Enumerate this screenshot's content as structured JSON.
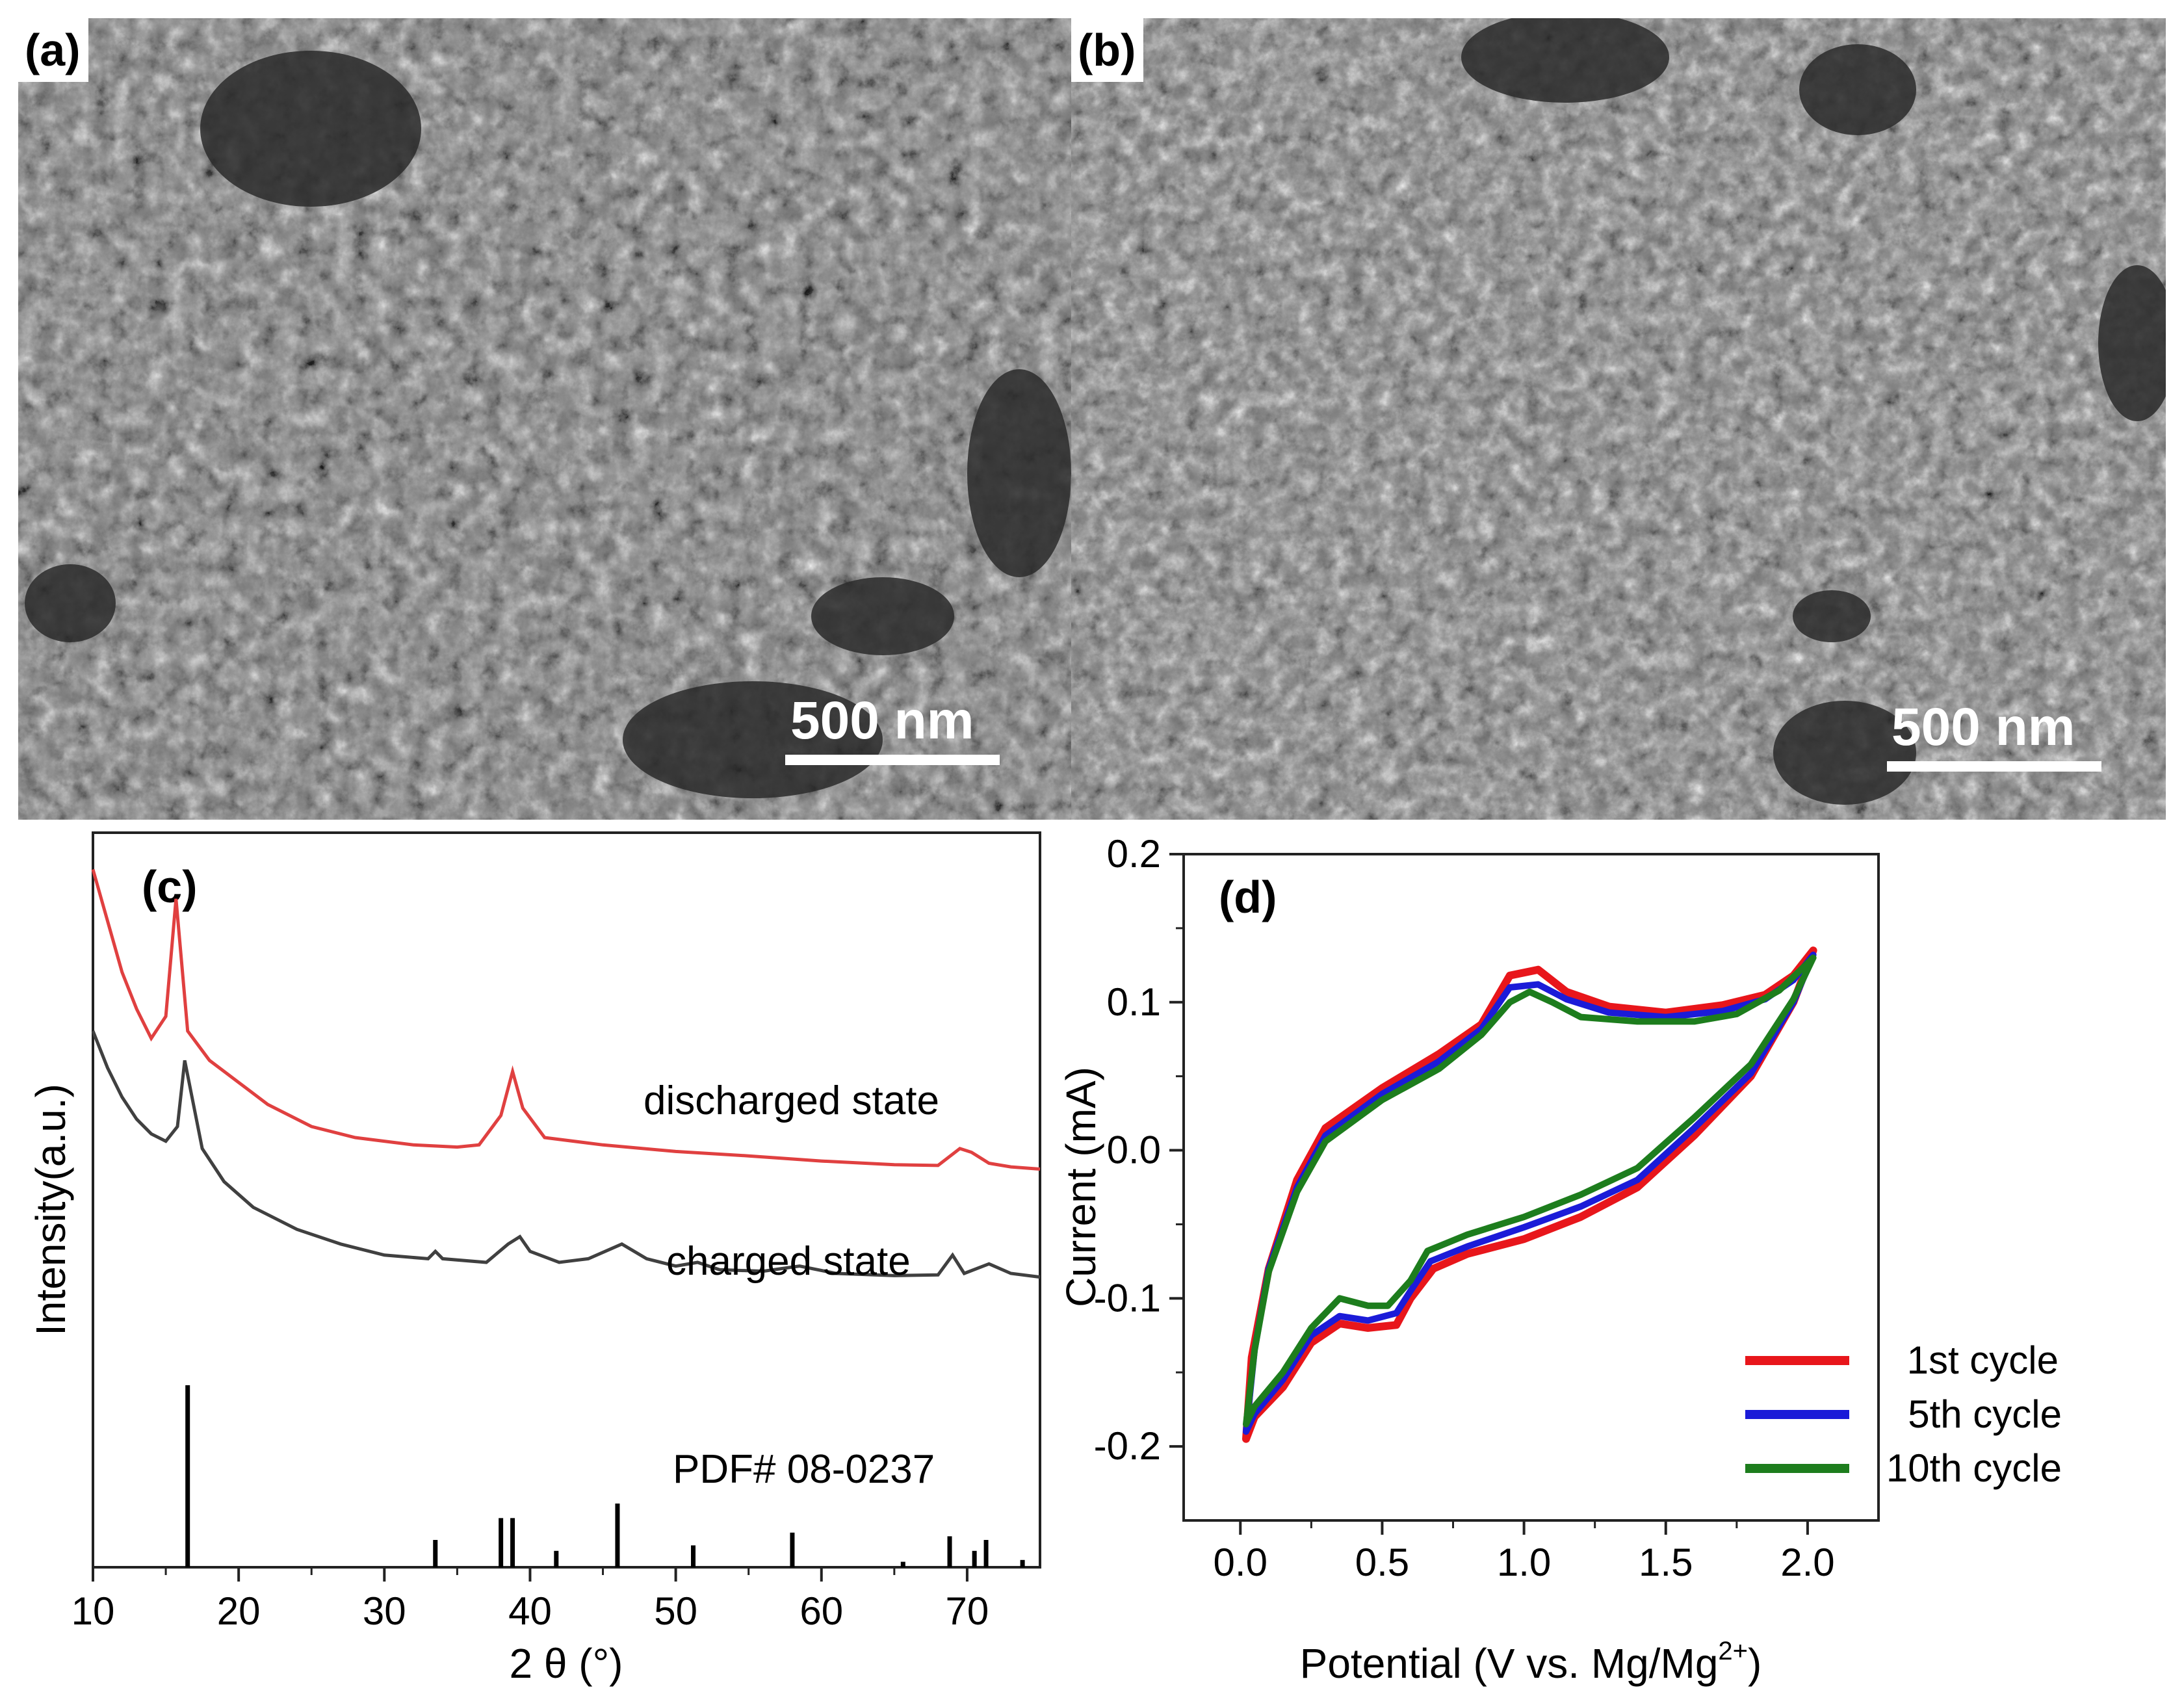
{
  "panels": {
    "a": {
      "label": "(a)",
      "scale_label": "500 nm"
    },
    "b": {
      "label": "(b)",
      "scale_label": "500 nm"
    },
    "c": {
      "label": "(c)"
    },
    "d": {
      "label": "(d)"
    }
  },
  "colors": {
    "discharged": "#e04040",
    "charged": "#404040",
    "cycle1": "#e8161b",
    "cycle5": "#1b1bd8",
    "cycle10": "#1d7d1d",
    "sem_bg": "#7f7f7f"
  },
  "chart_data": [
    {
      "id": "c",
      "type": "line",
      "title": "",
      "xlabel": "2 θ (°)",
      "ylabel": "Intensity(a.u.)",
      "xlim": [
        10,
        75
      ],
      "xticks": [
        10,
        20,
        30,
        40,
        50,
        60,
        70
      ],
      "y_ticks_shown": false,
      "series": [
        {
          "name": "discharged state",
          "points": [
            [
              10,
              0.95
            ],
            [
              11,
              0.88
            ],
            [
              12,
              0.81
            ],
            [
              13,
              0.76
            ],
            [
              14,
              0.72
            ],
            [
              15,
              0.75
            ],
            [
              15.7,
              0.91
            ],
            [
              16.5,
              0.73
            ],
            [
              18,
              0.69
            ],
            [
              20,
              0.66
            ],
            [
              22,
              0.63
            ],
            [
              25,
              0.6
            ],
            [
              28,
              0.585
            ],
            [
              32,
              0.575
            ],
            [
              35,
              0.572
            ],
            [
              36.5,
              0.575
            ],
            [
              38,
              0.615
            ],
            [
              38.8,
              0.675
            ],
            [
              39.5,
              0.625
            ],
            [
              41,
              0.585
            ],
            [
              45,
              0.575
            ],
            [
              50,
              0.566
            ],
            [
              55,
              0.56
            ],
            [
              60,
              0.553
            ],
            [
              65,
              0.548
            ],
            [
              68,
              0.547
            ],
            [
              69.5,
              0.57
            ],
            [
              70.3,
              0.565
            ],
            [
              71.5,
              0.55
            ],
            [
              73,
              0.545
            ],
            [
              75,
              0.542
            ]
          ]
        },
        {
          "name": "charged state",
          "points": [
            [
              10,
              0.73
            ],
            [
              11,
              0.68
            ],
            [
              12,
              0.64
            ],
            [
              13,
              0.61
            ],
            [
              14,
              0.59
            ],
            [
              15,
              0.58
            ],
            [
              15.8,
              0.6
            ],
            [
              16.3,
              0.69
            ],
            [
              16.8,
              0.64
            ],
            [
              17.5,
              0.57
            ],
            [
              19,
              0.525
            ],
            [
              21,
              0.49
            ],
            [
              24,
              0.46
            ],
            [
              27,
              0.44
            ],
            [
              30,
              0.425
            ],
            [
              33,
              0.42
            ],
            [
              33.5,
              0.43
            ],
            [
              34,
              0.42
            ],
            [
              37,
              0.415
            ],
            [
              38.5,
              0.44
            ],
            [
              39.3,
              0.45
            ],
            [
              40,
              0.43
            ],
            [
              42,
              0.415
            ],
            [
              44,
              0.42
            ],
            [
              46.3,
              0.44
            ],
            [
              48,
              0.42
            ],
            [
              50,
              0.41
            ],
            [
              51.5,
              0.415
            ],
            [
              53,
              0.405
            ],
            [
              56,
              0.403
            ],
            [
              58.5,
              0.41
            ],
            [
              61,
              0.4
            ],
            [
              65,
              0.397
            ],
            [
              68,
              0.398
            ],
            [
              69,
              0.425
            ],
            [
              69.8,
              0.4
            ],
            [
              71.5,
              0.413
            ],
            [
              73,
              0.4
            ],
            [
              75,
              0.395
            ]
          ]
        }
      ],
      "reference_pattern": {
        "name": "PDF# 08-0237",
        "lines": [
          [
            16.5,
            1.0
          ],
          [
            33.5,
            0.15
          ],
          [
            38.0,
            0.27
          ],
          [
            38.8,
            0.27
          ],
          [
            41.8,
            0.09
          ],
          [
            46.0,
            0.35
          ],
          [
            51.2,
            0.12
          ],
          [
            58.0,
            0.19
          ],
          [
            65.6,
            0.03
          ],
          [
            68.8,
            0.17
          ],
          [
            70.5,
            0.09
          ],
          [
            71.3,
            0.15
          ],
          [
            73.8,
            0.04
          ]
        ]
      },
      "annotations": [
        "discharged state",
        "charged state",
        "PDF# 08-0237"
      ]
    },
    {
      "id": "d",
      "type": "line",
      "title": "",
      "xlabel": "Potential (V vs. Mg/Mg",
      "xlabel_sup": "2+",
      "xlabel_end": ")",
      "ylabel": "Current (mA)",
      "xlim": [
        -0.2,
        2.25
      ],
      "ylim": [
        -0.25,
        0.2
      ],
      "xticks": [
        "0.0",
        "0.5",
        "1.0",
        "1.5",
        "2.0"
      ],
      "yticks": [
        "-0.2",
        "-0.1",
        "0.0",
        "0.1",
        "0.2"
      ],
      "legend_position": "bottom-right",
      "series": [
        {
          "name": "1st cycle",
          "points": [
            [
              0.02,
              -0.195
            ],
            [
              0.04,
              -0.14
            ],
            [
              0.1,
              -0.08
            ],
            [
              0.2,
              -0.02
            ],
            [
              0.3,
              0.015
            ],
            [
              0.5,
              0.042
            ],
            [
              0.7,
              0.065
            ],
            [
              0.85,
              0.085
            ],
            [
              0.95,
              0.118
            ],
            [
              1.05,
              0.122
            ],
            [
              1.15,
              0.107
            ],
            [
              1.3,
              0.097
            ],
            [
              1.5,
              0.093
            ],
            [
              1.7,
              0.098
            ],
            [
              1.85,
              0.105
            ],
            [
              1.95,
              0.118
            ],
            [
              2.02,
              0.135
            ],
            [
              1.95,
              0.1
            ],
            [
              1.8,
              0.05
            ],
            [
              1.6,
              0.01
            ],
            [
              1.4,
              -0.025
            ],
            [
              1.2,
              -0.045
            ],
            [
              1.0,
              -0.06
            ],
            [
              0.8,
              -0.07
            ],
            [
              0.68,
              -0.08
            ],
            [
              0.6,
              -0.1
            ],
            [
              0.55,
              -0.118
            ],
            [
              0.45,
              -0.12
            ],
            [
              0.35,
              -0.117
            ],
            [
              0.25,
              -0.13
            ],
            [
              0.15,
              -0.16
            ],
            [
              0.05,
              -0.18
            ],
            [
              0.02,
              -0.195
            ]
          ]
        },
        {
          "name": "5th cycle",
          "points": [
            [
              0.02,
              -0.19
            ],
            [
              0.05,
              -0.135
            ],
            [
              0.1,
              -0.08
            ],
            [
              0.2,
              -0.025
            ],
            [
              0.3,
              0.01
            ],
            [
              0.5,
              0.038
            ],
            [
              0.7,
              0.06
            ],
            [
              0.85,
              0.082
            ],
            [
              0.95,
              0.11
            ],
            [
              1.05,
              0.112
            ],
            [
              1.15,
              0.102
            ],
            [
              1.3,
              0.093
            ],
            [
              1.5,
              0.09
            ],
            [
              1.7,
              0.094
            ],
            [
              1.85,
              0.102
            ],
            [
              1.95,
              0.115
            ],
            [
              2.02,
              0.132
            ],
            [
              1.95,
              0.1
            ],
            [
              1.8,
              0.052
            ],
            [
              1.6,
              0.015
            ],
            [
              1.4,
              -0.02
            ],
            [
              1.2,
              -0.038
            ],
            [
              1.0,
              -0.052
            ],
            [
              0.8,
              -0.065
            ],
            [
              0.67,
              -0.075
            ],
            [
              0.6,
              -0.095
            ],
            [
              0.55,
              -0.11
            ],
            [
              0.45,
              -0.115
            ],
            [
              0.35,
              -0.112
            ],
            [
              0.25,
              -0.125
            ],
            [
              0.15,
              -0.155
            ],
            [
              0.05,
              -0.178
            ],
            [
              0.02,
              -0.19
            ]
          ]
        },
        {
          "name": "10th cycle",
          "points": [
            [
              0.02,
              -0.185
            ],
            [
              0.05,
              -0.135
            ],
            [
              0.1,
              -0.082
            ],
            [
              0.2,
              -0.028
            ],
            [
              0.3,
              0.006
            ],
            [
              0.5,
              0.034
            ],
            [
              0.7,
              0.055
            ],
            [
              0.85,
              0.078
            ],
            [
              0.95,
              0.1
            ],
            [
              1.02,
              0.107
            ],
            [
              1.1,
              0.1
            ],
            [
              1.2,
              0.09
            ],
            [
              1.4,
              0.087
            ],
            [
              1.6,
              0.087
            ],
            [
              1.75,
              0.092
            ],
            [
              1.9,
              0.108
            ],
            [
              2.02,
              0.13
            ],
            [
              1.95,
              0.102
            ],
            [
              1.8,
              0.058
            ],
            [
              1.6,
              0.022
            ],
            [
              1.4,
              -0.012
            ],
            [
              1.2,
              -0.03
            ],
            [
              1.0,
              -0.045
            ],
            [
              0.8,
              -0.057
            ],
            [
              0.66,
              -0.068
            ],
            [
              0.6,
              -0.088
            ],
            [
              0.52,
              -0.105
            ],
            [
              0.45,
              -0.105
            ],
            [
              0.35,
              -0.1
            ],
            [
              0.25,
              -0.12
            ],
            [
              0.15,
              -0.15
            ],
            [
              0.05,
              -0.173
            ],
            [
              0.02,
              -0.185
            ]
          ]
        }
      ]
    }
  ]
}
